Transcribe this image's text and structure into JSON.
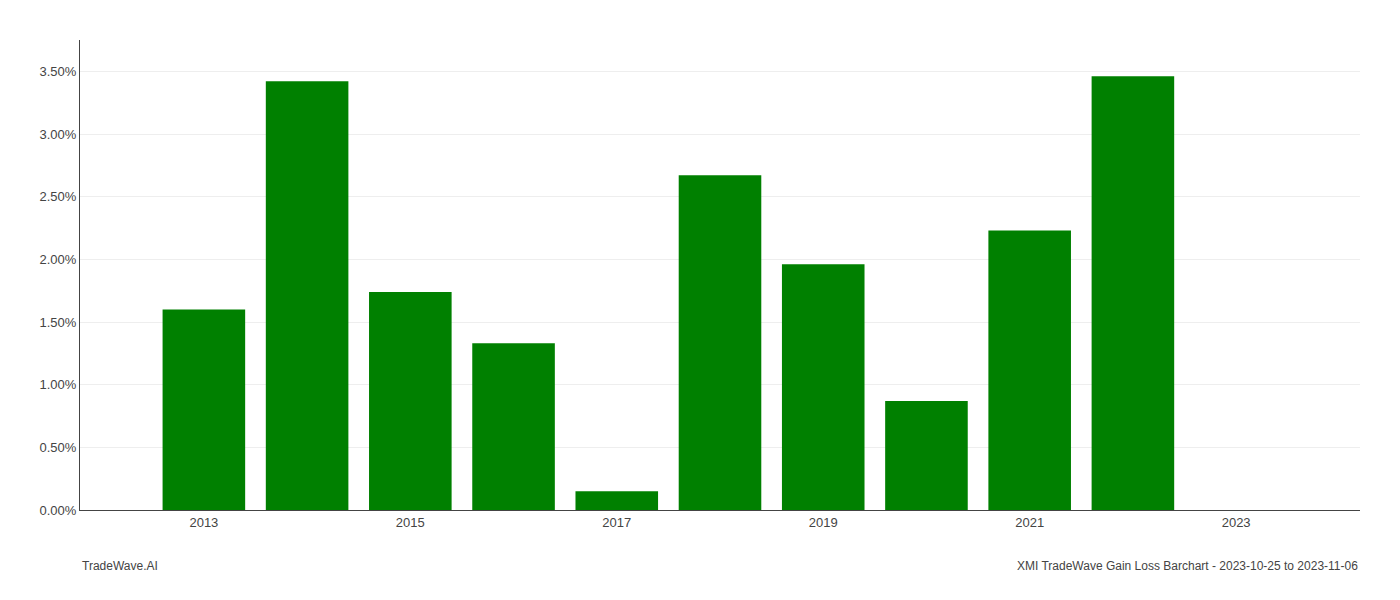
{
  "chart_data": {
    "type": "bar",
    "x": [
      2013,
      2014,
      2015,
      2016,
      2017,
      2018,
      2019,
      2020,
      2021,
      2022
    ],
    "values": [
      0.016,
      0.0342,
      0.0174,
      0.0133,
      0.0015,
      0.0267,
      0.0196,
      0.0087,
      0.0223,
      0.0346
    ],
    "color": "#008000",
    "xlim": [
      2011.8,
      2024.2
    ],
    "xticks": [
      2013,
      2015,
      2017,
      2019,
      2021,
      2023
    ],
    "ylim": [
      0,
      0.0375
    ],
    "yticks": [
      {
        "value": 0.0,
        "label": "0.00%"
      },
      {
        "value": 0.005,
        "label": "0.50%"
      },
      {
        "value": 0.01,
        "label": "1.00%"
      },
      {
        "value": 0.015,
        "label": "1.50%"
      },
      {
        "value": 0.02,
        "label": "2.00%"
      },
      {
        "value": 0.025,
        "label": "2.50%"
      },
      {
        "value": 0.03,
        "label": "3.00%"
      },
      {
        "value": 0.035,
        "label": "3.50%"
      }
    ],
    "grid": true,
    "annotations": [
      "TradeWave.AI",
      "XMI TradeWave Gain Loss Barchart - 2023-10-25 to 2023-11-06"
    ]
  }
}
